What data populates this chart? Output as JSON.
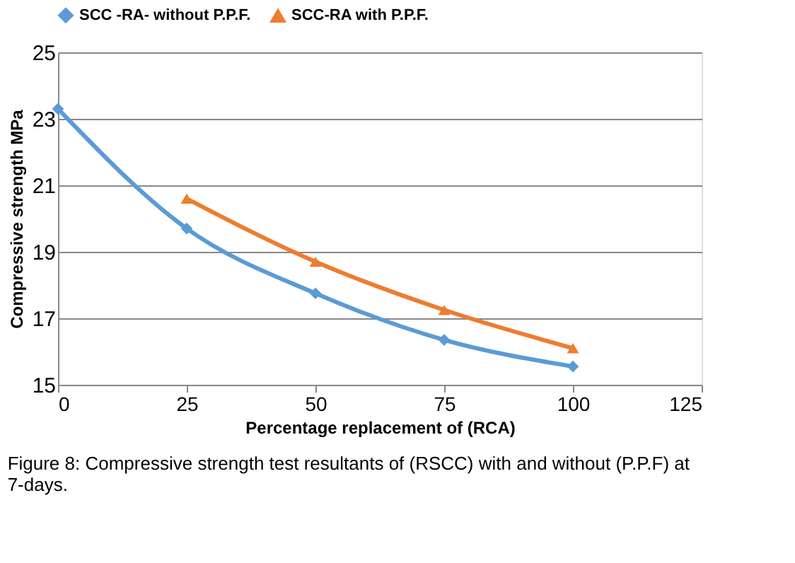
{
  "chart_data": {
    "type": "line",
    "xlabel": "Percentage replacement of (RCA)",
    "ylabel": "Compressive strength MPa",
    "x": [
      0,
      25,
      50,
      75,
      100
    ],
    "series": [
      {
        "name": "SCC -RA- without P.P.F.",
        "color": "#5b9bd5",
        "marker": "diamond",
        "values": [
          23.3,
          19.7,
          17.75,
          16.35,
          15.55
        ]
      },
      {
        "name": "SCC-RA with P.P.F.",
        "color": "#ed7d31",
        "marker": "triangle",
        "values": [
          null,
          20.6,
          18.7,
          17.25,
          16.1
        ]
      }
    ],
    "xlim": [
      0,
      125
    ],
    "xticks": [
      0,
      25,
      50,
      75,
      100,
      125
    ],
    "ylim": [
      15,
      25
    ],
    "yticks": [
      15,
      17,
      19,
      21,
      23,
      25
    ],
    "grid": "y",
    "legend": "top",
    "line_style": "solid",
    "annotations": [
      "Figure 8: Compressive strength test resultants of (RSCC) with and without (P.P.F) at 7-days."
    ]
  }
}
